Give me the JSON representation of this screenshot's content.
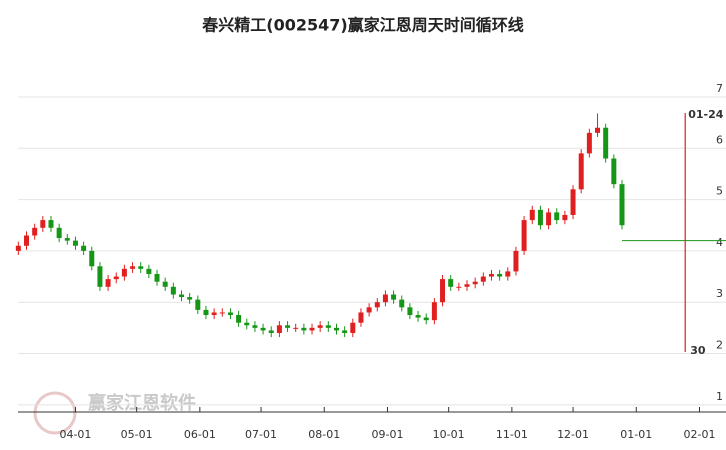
{
  "chart_data": {
    "type": "candlestick",
    "title": "春兴精工(002547)赢家江恩周天时间循环线",
    "watermark": "赢家江恩软件",
    "up_color": "#e02020",
    "down_color": "#169616",
    "grid": true,
    "xlim": [
      -6,
      350
    ],
    "ylim": [
      0.86,
      7.72
    ],
    "xticks": [
      {
        "value": 31,
        "label": "04-01"
      },
      {
        "value": 61,
        "label": "05-01"
      },
      {
        "value": 92,
        "label": "06-01"
      },
      {
        "value": 122,
        "label": "07-01"
      },
      {
        "value": 153,
        "label": "08-01"
      },
      {
        "value": 184,
        "label": "09-01"
      },
      {
        "value": 214,
        "label": "10-01"
      },
      {
        "value": 245,
        "label": "11-01"
      },
      {
        "value": 275,
        "label": "12-01"
      },
      {
        "value": 306,
        "label": "01-01"
      },
      {
        "value": 337,
        "label": "02-01"
      }
    ],
    "yticks": [
      1,
      2,
      3,
      4,
      5,
      6,
      7
    ],
    "x": [
      3,
      7,
      11,
      15,
      19,
      23,
      27,
      31,
      35,
      39,
      43,
      47,
      51,
      55,
      59,
      63,
      67,
      71,
      75,
      79,
      83,
      87,
      91,
      95,
      99,
      103,
      107,
      111,
      115,
      119,
      123,
      127,
      131,
      135,
      139,
      143,
      147,
      151,
      155,
      159,
      163,
      167,
      171,
      175,
      179,
      183,
      187,
      191,
      195,
      199,
      203,
      207,
      211,
      215,
      219,
      223,
      227,
      231,
      235,
      239,
      243,
      247,
      251,
      255,
      259,
      263,
      267,
      271,
      275,
      279,
      283,
      287,
      291,
      295,
      299
    ],
    "open": [
      4.0,
      4.1,
      4.3,
      4.45,
      4.6,
      4.45,
      4.25,
      4.2,
      4.1,
      4.0,
      3.7,
      3.3,
      3.45,
      3.5,
      3.65,
      3.7,
      3.65,
      3.55,
      3.4,
      3.3,
      3.15,
      3.1,
      3.05,
      2.85,
      2.75,
      2.8,
      2.8,
      2.75,
      2.6,
      2.55,
      2.5,
      2.45,
      2.4,
      2.55,
      2.5,
      2.5,
      2.45,
      2.5,
      2.55,
      2.5,
      2.45,
      2.4,
      2.6,
      2.8,
      2.9,
      3.0,
      3.15,
      3.05,
      2.9,
      2.75,
      2.7,
      2.65,
      3.0,
      3.45,
      3.3,
      3.3,
      3.35,
      3.4,
      3.5,
      3.55,
      3.5,
      3.6,
      4.0,
      4.6,
      4.8,
      4.5,
      4.75,
      4.6,
      4.7,
      5.2,
      5.9,
      6.3,
      6.4,
      5.8,
      5.3
    ],
    "close": [
      4.1,
      4.3,
      4.45,
      4.6,
      4.45,
      4.25,
      4.2,
      4.1,
      4.0,
      3.7,
      3.3,
      3.45,
      3.5,
      3.65,
      3.7,
      3.65,
      3.55,
      3.4,
      3.3,
      3.15,
      3.1,
      3.05,
      2.85,
      2.75,
      2.8,
      2.8,
      2.75,
      2.6,
      2.55,
      2.5,
      2.45,
      2.4,
      2.55,
      2.5,
      2.5,
      2.45,
      2.5,
      2.55,
      2.5,
      2.45,
      2.4,
      2.6,
      2.8,
      2.9,
      3.0,
      3.15,
      3.05,
      2.9,
      2.75,
      2.7,
      2.65,
      3.0,
      3.45,
      3.3,
      3.3,
      3.35,
      3.4,
      3.5,
      3.55,
      3.5,
      3.6,
      4.0,
      4.6,
      4.8,
      4.5,
      4.75,
      4.6,
      4.7,
      5.2,
      5.9,
      6.3,
      6.4,
      5.8,
      5.3,
      4.5
    ],
    "high": [
      4.18,
      4.38,
      4.53,
      4.68,
      4.68,
      4.53,
      4.33,
      4.28,
      4.18,
      4.08,
      3.78,
      3.53,
      3.58,
      3.73,
      3.78,
      3.78,
      3.73,
      3.63,
      3.48,
      3.38,
      3.23,
      3.18,
      3.13,
      2.93,
      2.88,
      2.88,
      2.88,
      2.83,
      2.68,
      2.63,
      2.58,
      2.53,
      2.63,
      2.63,
      2.58,
      2.58,
      2.58,
      2.63,
      2.63,
      2.58,
      2.53,
      2.68,
      2.88,
      2.98,
      3.08,
      3.23,
      3.23,
      3.13,
      2.98,
      2.83,
      2.78,
      3.08,
      3.53,
      3.53,
      3.38,
      3.43,
      3.48,
      3.58,
      3.63,
      3.63,
      3.68,
      4.08,
      4.68,
      4.88,
      4.88,
      4.83,
      4.83,
      4.78,
      5.28,
      5.98,
      6.38,
      6.68,
      6.48,
      5.88,
      5.38
    ],
    "low": [
      3.92,
      4.02,
      4.22,
      4.37,
      4.37,
      4.17,
      4.12,
      4.02,
      3.92,
      3.62,
      3.22,
      3.22,
      3.37,
      3.42,
      3.57,
      3.57,
      3.47,
      3.32,
      3.22,
      3.07,
      3.02,
      2.97,
      2.77,
      2.67,
      2.67,
      2.72,
      2.67,
      2.52,
      2.47,
      2.42,
      2.37,
      2.32,
      2.32,
      2.42,
      2.42,
      2.37,
      2.37,
      2.42,
      2.42,
      2.37,
      2.32,
      2.32,
      2.52,
      2.72,
      2.82,
      2.92,
      2.97,
      2.82,
      2.67,
      2.62,
      2.57,
      2.57,
      2.92,
      3.22,
      3.22,
      3.22,
      3.27,
      3.32,
      3.42,
      3.42,
      3.42,
      3.52,
      3.92,
      4.52,
      4.42,
      4.42,
      4.52,
      4.52,
      4.62,
      5.12,
      5.82,
      6.22,
      5.72,
      5.22,
      4.42
    ],
    "level_line": {
      "value": 4.2,
      "color": "#169616"
    },
    "cycle_line": {
      "x": 330,
      "label_top": "01-24",
      "label_bottom": "30",
      "color": "#e02020"
    }
  }
}
